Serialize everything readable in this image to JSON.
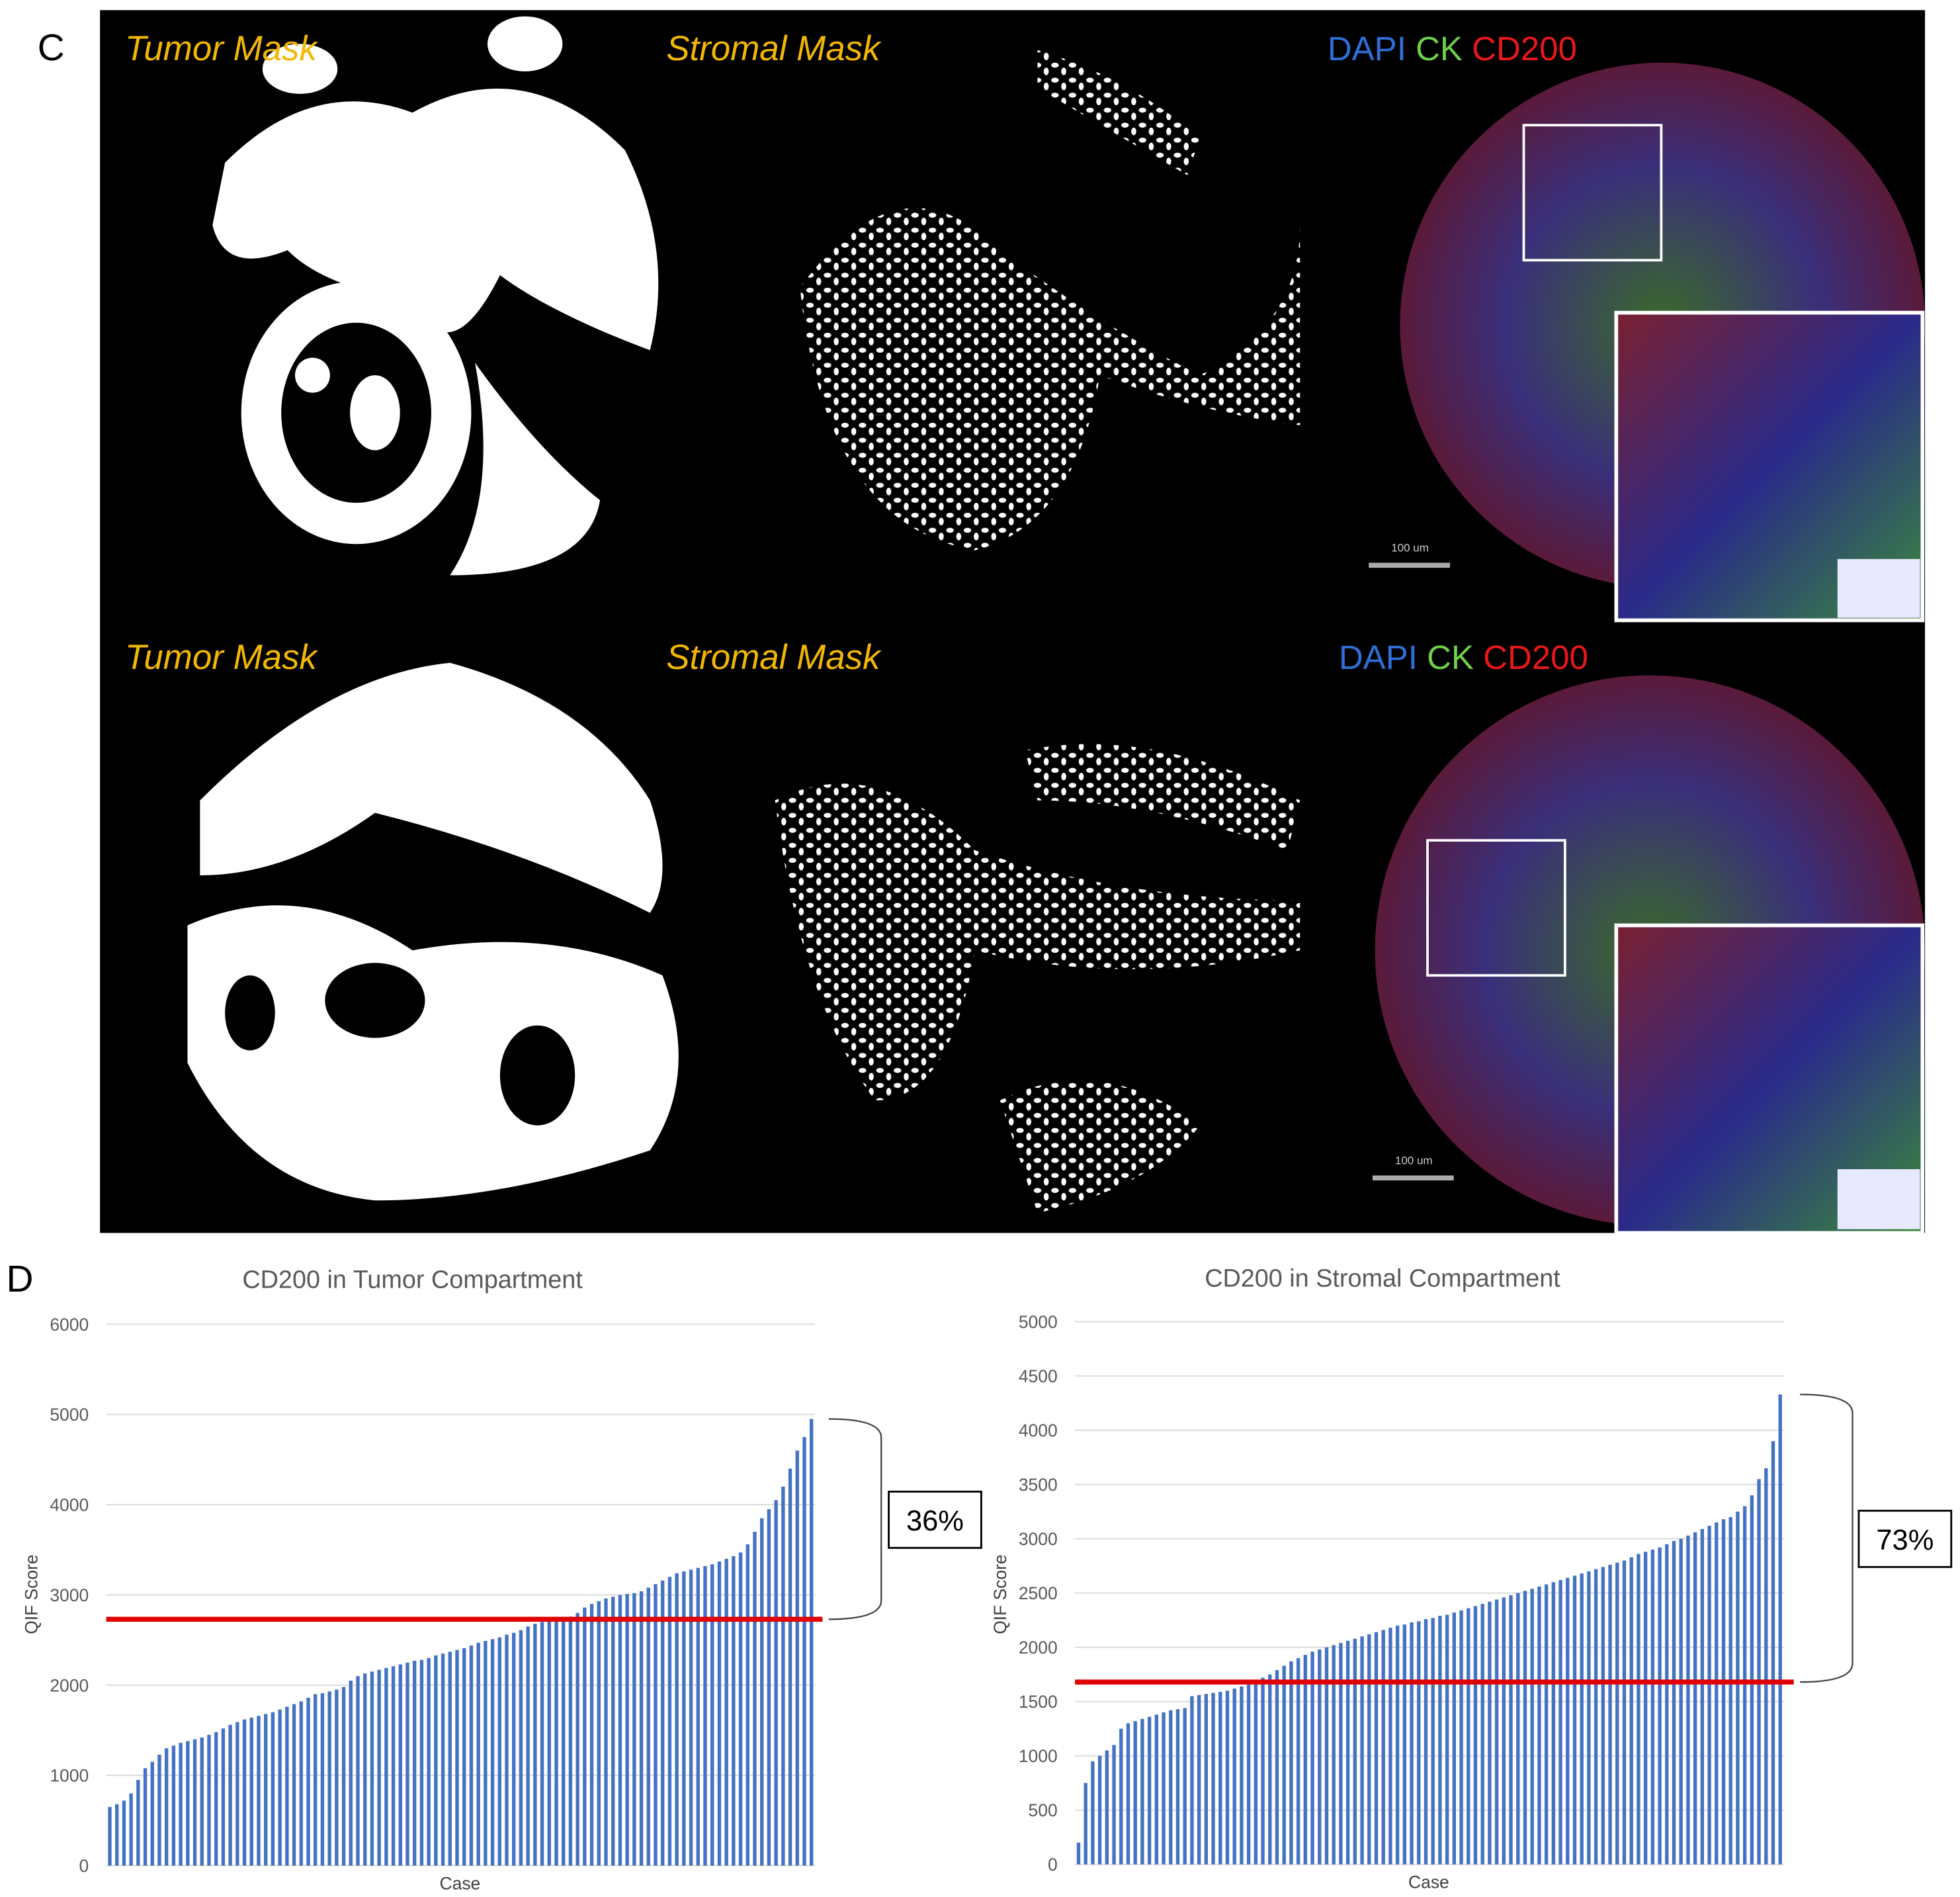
{
  "panel_c": {
    "label": "C",
    "rows": [
      {
        "tumor_label": "Tumor Mask",
        "stromal_label": "Stromal Mask",
        "stain": [
          "DAPI",
          "CK",
          "CD200"
        ],
        "scale_bar": "100 um"
      },
      {
        "tumor_label": "Tumor Mask",
        "stromal_label": "Stromal Mask",
        "stain": [
          "DAPI",
          "CK",
          "CD200"
        ],
        "scale_bar": "100 um"
      }
    ]
  },
  "panel_d_label": "D",
  "chart_data": [
    {
      "type": "bar",
      "title": "CD200 in Tumor Compartment",
      "y_label": "QIF Score",
      "x_label": "Case",
      "color": "#4472c4",
      "values": [
        650,
        680,
        720,
        800,
        950,
        1080,
        1150,
        1230,
        1300,
        1330,
        1360,
        1380,
        1400,
        1420,
        1450,
        1480,
        1520,
        1560,
        1590,
        1620,
        1640,
        1660,
        1680,
        1700,
        1730,
        1760,
        1790,
        1820,
        1860,
        1900,
        1910,
        1930,
        1950,
        1980,
        2050,
        2100,
        2130,
        2150,
        2170,
        2190,
        2210,
        2230,
        2250,
        2270,
        2280,
        2300,
        2330,
        2350,
        2370,
        2390,
        2410,
        2440,
        2470,
        2490,
        2510,
        2530,
        2560,
        2580,
        2610,
        2650,
        2680,
        2700,
        2710,
        2720,
        2730,
        2760,
        2800,
        2860,
        2900,
        2930,
        2960,
        2980,
        3000,
        3010,
        3020,
        3040,
        3080,
        3120,
        3160,
        3200,
        3240,
        3260,
        3280,
        3300,
        3320,
        3340,
        3370,
        3400,
        3430,
        3470,
        3560,
        3700,
        3850,
        3950,
        4050,
        4200,
        4400,
        4600,
        4750,
        4950
      ],
      "threshold": 2730,
      "threshold_color": "#e00000",
      "annotation": "36%",
      "ylim": [
        0,
        6000
      ],
      "yticks": [
        0,
        1000,
        2000,
        3000,
        4000,
        5000,
        6000
      ],
      "grid": true
    },
    {
      "type": "bar",
      "title": "CD200 in Stromal Compartment",
      "y_label": "QIF Score",
      "x_label": "Case",
      "color": "#4472c4",
      "values": [
        200,
        750,
        950,
        1000,
        1050,
        1100,
        1250,
        1300,
        1320,
        1340,
        1360,
        1380,
        1400,
        1420,
        1430,
        1440,
        1550,
        1560,
        1570,
        1580,
        1590,
        1600,
        1620,
        1640,
        1660,
        1680,
        1720,
        1750,
        1790,
        1830,
        1870,
        1900,
        1930,
        1960,
        1980,
        2000,
        2020,
        2040,
        2060,
        2080,
        2100,
        2120,
        2140,
        2160,
        2180,
        2200,
        2210,
        2230,
        2240,
        2260,
        2270,
        2290,
        2300,
        2320,
        2340,
        2360,
        2380,
        2400,
        2420,
        2440,
        2460,
        2480,
        2500,
        2520,
        2540,
        2560,
        2580,
        2600,
        2620,
        2640,
        2660,
        2680,
        2700,
        2720,
        2740,
        2760,
        2780,
        2800,
        2830,
        2860,
        2880,
        2900,
        2920,
        2950,
        2980,
        3000,
        3030,
        3060,
        3090,
        3120,
        3150,
        3180,
        3200,
        3250,
        3300,
        3400,
        3550,
        3650,
        3900,
        4330
      ],
      "threshold": 1680,
      "threshold_color": "#e00000",
      "annotation": "73%",
      "ylim": [
        0,
        5000
      ],
      "yticks": [
        0,
        500,
        1000,
        1500,
        2000,
        2500,
        3000,
        3500,
        4000,
        4500,
        5000
      ],
      "grid": true
    }
  ]
}
